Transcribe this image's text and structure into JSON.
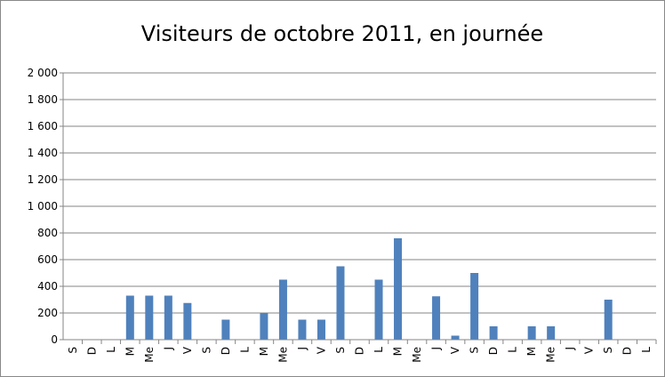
{
  "chart_data": {
    "type": "bar",
    "title": "Visiteurs de octobre 2011, en journée",
    "categories": [
      "S",
      "D",
      "L",
      "M",
      "Me",
      "J",
      "V",
      "S",
      "D",
      "L",
      "M",
      "Me",
      "J",
      "V",
      "S",
      "D",
      "L",
      "M",
      "Me",
      "J",
      "V",
      "S",
      "D",
      "L",
      "M",
      "Me",
      "J",
      "V",
      "S",
      "D",
      "L"
    ],
    "values": [
      0,
      0,
      0,
      330,
      330,
      330,
      275,
      0,
      150,
      0,
      200,
      450,
      150,
      150,
      550,
      0,
      450,
      760,
      0,
      325,
      30,
      500,
      100,
      0,
      100,
      100,
      0,
      0,
      300,
      0,
      0
    ],
    "color": "#4f81bd",
    "ylim": [
      0,
      2000
    ],
    "yticks": [
      0,
      200,
      400,
      600,
      800,
      {
        "value": 1000,
        "label": "1 000"
      },
      {
        "value": 1200,
        "label": "1 200"
      },
      {
        "value": 1400,
        "label": "1 400"
      },
      {
        "value": 1600,
        "label": "1 600"
      },
      {
        "value": 1800,
        "label": "1 800"
      },
      {
        "value": 2000,
        "label": "2 000"
      }
    ],
    "grid": true
  }
}
